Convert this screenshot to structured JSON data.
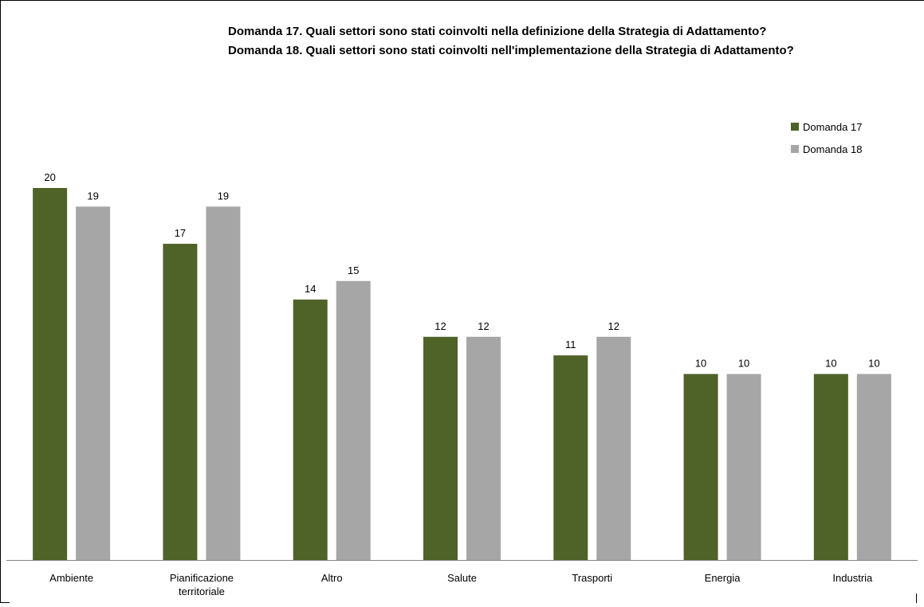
{
  "chart_data": {
    "type": "bar",
    "title_lines": [
      "Domanda 17. Quali settori sono stati coinvolti nella definizione della Strategia di Adattamento?",
      "Domanda 18. Quali settori sono stati coinvolti nell'implementazione della Strategia di Adattamento?"
    ],
    "categories": [
      [
        "Ambiente"
      ],
      [
        "Pianificazione",
        "territoriale"
      ],
      [
        "Altro"
      ],
      [
        "Salute"
      ],
      [
        "Trasporti"
      ],
      [
        "Energia"
      ],
      [
        "Industria"
      ]
    ],
    "series": [
      {
        "name": "Domanda 17",
        "values": [
          20,
          17,
          14,
          12,
          11,
          10,
          10
        ]
      },
      {
        "name": "Domanda 18",
        "values": [
          19,
          19,
          15,
          12,
          12,
          10,
          10
        ]
      }
    ],
    "ylim": [
      0,
      20
    ],
    "grid": false,
    "legend_position": "top-right",
    "data_labels": true
  },
  "colors": {
    "series": [
      "#4f6228",
      "#a6a6a6"
    ],
    "axis": "#868686",
    "frame": "#000000",
    "text": "#000000",
    "background": "#ffffff"
  }
}
